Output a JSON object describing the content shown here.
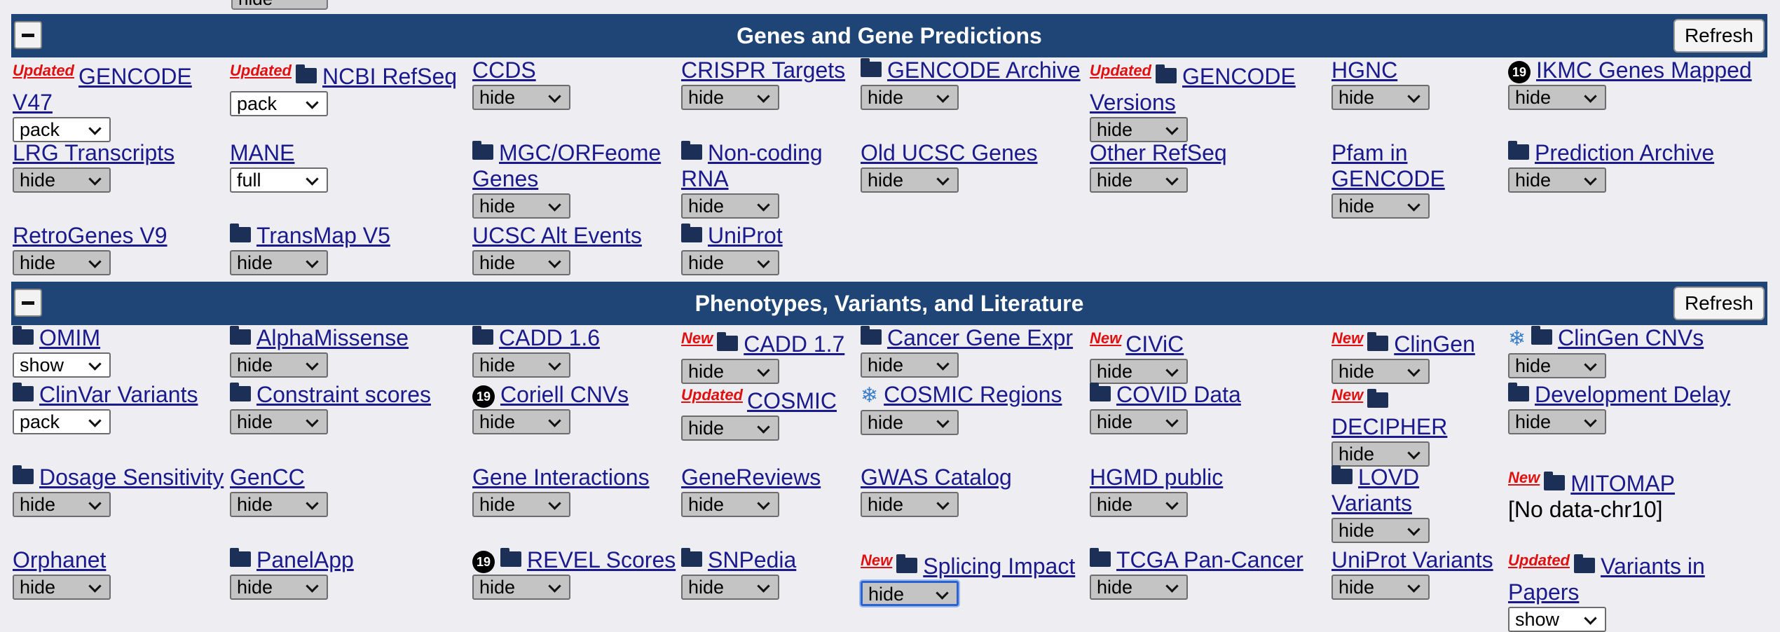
{
  "top_select": "hide",
  "sections": [
    {
      "title": "Genes and Gene Predictions",
      "refresh": "Refresh",
      "tracks": [
        {
          "tag": "Updated",
          "lines": [
            "GENCODE",
            "V47"
          ],
          "sel": "pack"
        },
        {
          "tag": "Updated",
          "folder": true,
          "lines": [
            "NCBI RefSeq"
          ],
          "sel": "pack"
        },
        {
          "lines": [
            "CCDS"
          ],
          "sel": "hide"
        },
        {
          "lines": [
            "CRISPR Targets"
          ],
          "sel": "hide"
        },
        {
          "folder": true,
          "lines": [
            "GENCODE Archive"
          ],
          "sel": "hide"
        },
        {
          "tag": "Updated",
          "folder": true,
          "lines": [
            "GENCODE",
            "Versions"
          ],
          "sel": "hide"
        },
        {
          "lines": [
            "HGNC"
          ],
          "sel": "hide"
        },
        {
          "badge": "19",
          "lines": [
            "IKMC Genes Mapped"
          ],
          "sel": "hide"
        },
        {
          "lines": [
            "LRG Transcripts"
          ],
          "sel": "hide"
        },
        {
          "lines": [
            "MANE"
          ],
          "sel": "full"
        },
        {
          "folder": true,
          "lines": [
            "MGC/ORFeome",
            "Genes"
          ],
          "sel": "hide"
        },
        {
          "folder": true,
          "lines": [
            "Non-coding",
            "RNA"
          ],
          "sel": "hide"
        },
        {
          "lines": [
            "Old UCSC Genes"
          ],
          "sel": "hide"
        },
        {
          "lines": [
            "Other RefSeq"
          ],
          "sel": "hide"
        },
        {
          "lines": [
            "Pfam in",
            "GENCODE"
          ],
          "sel": "hide"
        },
        {
          "folder": true,
          "lines": [
            "Prediction Archive"
          ],
          "sel": "hide"
        },
        {
          "lines": [
            "RetroGenes V9"
          ],
          "sel": "hide"
        },
        {
          "folder": true,
          "lines": [
            "TransMap V5"
          ],
          "sel": "hide"
        },
        {
          "lines": [
            "UCSC Alt Events"
          ],
          "sel": "hide"
        },
        {
          "folder": true,
          "lines": [
            "UniProt"
          ],
          "sel": "hide"
        }
      ]
    },
    {
      "title": "Phenotypes, Variants, and Literature",
      "refresh": "Refresh",
      "tracks": [
        {
          "folder": true,
          "lines": [
            "OMIM"
          ],
          "sel": "show"
        },
        {
          "folder": true,
          "lines": [
            "AlphaMissense"
          ],
          "sel": "hide"
        },
        {
          "folder": true,
          "lines": [
            "CADD 1.6"
          ],
          "sel": "hide"
        },
        {
          "tag": "New",
          "folder": true,
          "lines": [
            "CADD 1.7"
          ],
          "sel": "hide"
        },
        {
          "folder": true,
          "lines": [
            "Cancer Gene Expr"
          ],
          "sel": "hide"
        },
        {
          "tag": "New",
          "lines": [
            "CIViC"
          ],
          "sel": "hide"
        },
        {
          "tag": "New",
          "folder": true,
          "lines": [
            "ClinGen"
          ],
          "sel": "hide"
        },
        {
          "snow": true,
          "folder": true,
          "lines": [
            "ClinGen CNVs"
          ],
          "sel": "hide"
        },
        {
          "folder": true,
          "lines": [
            "ClinVar Variants"
          ],
          "sel": "pack"
        },
        {
          "folder": true,
          "lines": [
            "Constraint scores"
          ],
          "sel": "hide"
        },
        {
          "badge": "19",
          "lines": [
            "Coriell CNVs"
          ],
          "sel": "hide"
        },
        {
          "tag": "Updated",
          "lines": [
            "COSMIC"
          ],
          "sel": "hide"
        },
        {
          "snow": true,
          "lines": [
            "COSMIC Regions"
          ],
          "sel": "hide"
        },
        {
          "folder": true,
          "lines": [
            "COVID Data"
          ],
          "sel": "hide"
        },
        {
          "tag": "New",
          "folder": true,
          "lines": [
            "",
            "DECIPHER"
          ],
          "sel": "hide"
        },
        {
          "folder": true,
          "lines": [
            "Development Delay"
          ],
          "sel": "hide"
        },
        {
          "folder": true,
          "lines": [
            "Dosage Sensitivity"
          ],
          "sel": "hide"
        },
        {
          "lines": [
            "GenCC"
          ],
          "sel": "hide"
        },
        {
          "lines": [
            "Gene Interactions"
          ],
          "sel": "hide"
        },
        {
          "lines": [
            "GeneReviews"
          ],
          "sel": "hide"
        },
        {
          "lines": [
            "GWAS Catalog"
          ],
          "sel": "hide"
        },
        {
          "lines": [
            "HGMD public"
          ],
          "sel": "hide"
        },
        {
          "folder": true,
          "lines": [
            "LOVD",
            "Variants"
          ],
          "sel": "hide"
        },
        {
          "tag": "New",
          "folder": true,
          "lines": [
            "MITOMAP"
          ],
          "nodata": "[No data-chr10]"
        },
        {
          "lines": [
            "Orphanet"
          ],
          "sel": "hide"
        },
        {
          "folder": true,
          "lines": [
            "PanelApp"
          ],
          "sel": "hide"
        },
        {
          "badge": "19",
          "folder": true,
          "lines": [
            "REVEL Scores"
          ],
          "sel": "hide"
        },
        {
          "folder": true,
          "lines": [
            "SNPedia"
          ],
          "sel": "hide"
        },
        {
          "tag": "New",
          "folder": true,
          "lines": [
            "Splicing Impact"
          ],
          "sel": "hide",
          "focus": true
        },
        {
          "folder": true,
          "lines": [
            "TCGA Pan-Cancer"
          ],
          "sel": "hide"
        },
        {
          "lines": [
            "UniProt Variants"
          ],
          "sel": "hide"
        },
        {
          "tag": "Updated",
          "folder": true,
          "lines": [
            "Variants in",
            "Papers"
          ],
          "sel": "show"
        }
      ]
    }
  ]
}
